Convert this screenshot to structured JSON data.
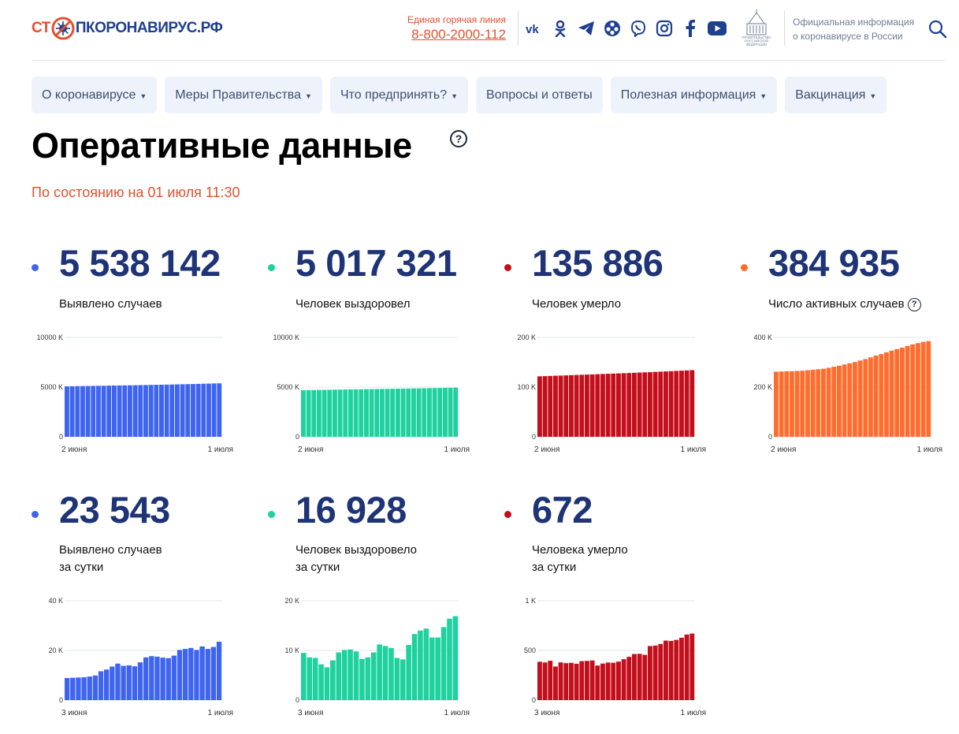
{
  "header": {
    "logo": {
      "part1": "СТ",
      "part2": "ПКОРОНАВИРУС.РФ"
    },
    "hotline": {
      "label": "Единая горячая линия",
      "number": "8-800-2000-112"
    },
    "social_icons": [
      "vk-icon",
      "odnoklassniki-icon",
      "telegram-icon",
      "rutube-icon",
      "viber-icon",
      "instagram-icon",
      "facebook-icon",
      "youtube-icon"
    ],
    "gov_emblem_text": "ПРАВИТЕЛЬСТВО РОССИЙСКОЙ ФЕДЕРАЦИИ",
    "official_info": {
      "line1": "Официальная информация",
      "line2": "о коронавирусе в России"
    }
  },
  "nav": [
    {
      "label": "О коронавирусе",
      "dropdown": true
    },
    {
      "label": "Меры Правительства",
      "dropdown": true
    },
    {
      "label": "Что предпринять?",
      "dropdown": true
    },
    {
      "label": "Вопросы и ответы",
      "dropdown": false
    },
    {
      "label": "Полезная информация",
      "dropdown": true
    },
    {
      "label": "Вакцинация",
      "dropdown": true
    }
  ],
  "page": {
    "title": "Оперативные данные",
    "help_symbol": "?",
    "date": "По состоянию на 01 июля 11:30"
  },
  "colors": {
    "blue": "#3e64f0",
    "green": "#1fd19e",
    "red": "#c30f1b",
    "orange": "#ff6d2e",
    "accent": "#e2512f",
    "number": "#1e3477"
  },
  "stats": [
    {
      "number": "5 538 142",
      "label1": "Выявлено случаев",
      "label2": "",
      "help": false,
      "color": "#3e64f0"
    },
    {
      "number": "5 017 321",
      "label1": "Человек выздоровел",
      "label2": "",
      "help": false,
      "color": "#1fd19e"
    },
    {
      "number": "135 886",
      "label1": "Человек умерло",
      "label2": "",
      "help": false,
      "color": "#c30f1b"
    },
    {
      "number": "384 935",
      "label1": "Число активных случаев",
      "label2": "",
      "help": true,
      "color": "#ff6d2e"
    },
    {
      "number": "23 543",
      "label1": "Выявлено случаев",
      "label2": "за сутки",
      "help": false,
      "color": "#3e64f0"
    },
    {
      "number": "16 928",
      "label1": "Человек выздоровело",
      "label2": "за сутки",
      "help": false,
      "color": "#1fd19e"
    },
    {
      "number": "672",
      "label1": "Человека умерло",
      "label2": "за сутки",
      "help": false,
      "color": "#c30f1b"
    }
  ],
  "chart_data": [
    {
      "type": "bar",
      "title": "",
      "color": "#3e64f0",
      "x_start": "2 июня",
      "x_end": "1 июля",
      "y_ticks": [
        "10000 K",
        "5000 K",
        "0"
      ],
      "ylim": [
        0,
        10000
      ],
      "values": [
        5079,
        5088,
        5096,
        5104,
        5112,
        5120,
        5128,
        5137,
        5146,
        5155,
        5164,
        5173,
        5182,
        5191,
        5200,
        5210,
        5220,
        5230,
        5240,
        5251,
        5262,
        5274,
        5286,
        5298,
        5311,
        5324,
        5338,
        5352,
        5366,
        5380
      ]
    },
    {
      "type": "bar",
      "title": "",
      "color": "#1fd19e",
      "x_start": "2 июня",
      "x_end": "1 июля",
      "y_ticks": [
        "10000 K",
        "5000 K",
        "0"
      ],
      "ylim": [
        0,
        10000
      ],
      "values": [
        4690,
        4699,
        4707,
        4716,
        4724,
        4733,
        4741,
        4749,
        4758,
        4766,
        4774,
        4782,
        4790,
        4798,
        4806,
        4815,
        4823,
        4832,
        4840,
        4849,
        4858,
        4867,
        4876,
        4885,
        4894,
        4904,
        4913,
        4923,
        4932,
        4942
      ]
    },
    {
      "type": "bar",
      "title": "",
      "color": "#c30f1b",
      "x_start": "2 июня",
      "x_end": "1 июля",
      "y_ticks": [
        "200 K",
        "100 K",
        "0"
      ],
      "ylim": [
        0,
        200
      ],
      "values": [
        121.7,
        122.1,
        122.5,
        122.9,
        123.2,
        123.6,
        124.0,
        124.4,
        124.8,
        125.2,
        125.6,
        126.0,
        126.4,
        126.8,
        127.2,
        127.6,
        128.0,
        128.4,
        128.8,
        129.3,
        129.7,
        130.1,
        130.6,
        131.1,
        131.6,
        132.1,
        132.6,
        133.1,
        133.6,
        134.2
      ]
    },
    {
      "type": "bar",
      "title": "",
      "color": "#ff6d2e",
      "x_start": "2 июня",
      "x_end": "1 июля",
      "y_ticks": [
        "400 K",
        "200 K",
        "0"
      ],
      "ylim": [
        0,
        400
      ],
      "values": [
        262,
        263,
        264,
        264,
        265,
        266,
        268,
        270,
        272,
        274,
        278,
        282,
        286,
        291,
        296,
        301,
        307,
        313,
        320,
        327,
        333,
        340,
        347,
        353,
        359,
        366,
        372,
        377,
        382,
        385
      ]
    },
    {
      "type": "bar",
      "title": "",
      "color": "#3e64f0",
      "x_start": "3 июня",
      "x_end": "1 июля",
      "y_ticks": [
        "40 K",
        "20 K",
        "0"
      ],
      "ylim": [
        0,
        40
      ],
      "values": [
        8.9,
        9.0,
        9.1,
        9.2,
        9.5,
        9.9,
        11.6,
        12.3,
        13.5,
        14.7,
        13.8,
        14.0,
        13.6,
        15.2,
        17.2,
        17.7,
        17.5,
        17.1,
        16.9,
        17.9,
        20.2,
        20.6,
        21.0,
        20.2,
        21.6,
        20.6,
        21.4,
        23.5
      ]
    },
    {
      "type": "bar",
      "title": "",
      "color": "#1fd19e",
      "x_start": "3 июня",
      "x_end": "1 июля",
      "y_ticks": [
        "20 K",
        "10 K",
        "0"
      ],
      "ylim": [
        0,
        20
      ],
      "values": [
        9.5,
        8.6,
        8.5,
        7.2,
        6.6,
        8.0,
        9.6,
        10.1,
        10.2,
        9.8,
        8.3,
        8.6,
        9.6,
        11.2,
        10.9,
        10.5,
        8.5,
        8.2,
        11.1,
        13.3,
        14.0,
        14.4,
        12.6,
        12.6,
        14.7,
        16.4,
        16.9
      ]
    },
    {
      "type": "bar",
      "title": "",
      "color": "#c30f1b",
      "x_start": "3 июня",
      "x_end": "1 июля",
      "y_ticks": [
        "1 K",
        "500",
        "0"
      ],
      "ylim": [
        0,
        1000
      ],
      "values": [
        386,
        379,
        396,
        338,
        380,
        372,
        375,
        366,
        392,
        395,
        399,
        348,
        368,
        378,
        376,
        388,
        412,
        436,
        464,
        466,
        456,
        544,
        549,
        565,
        599,
        596,
        606,
        628,
        660,
        670
      ]
    }
  ]
}
